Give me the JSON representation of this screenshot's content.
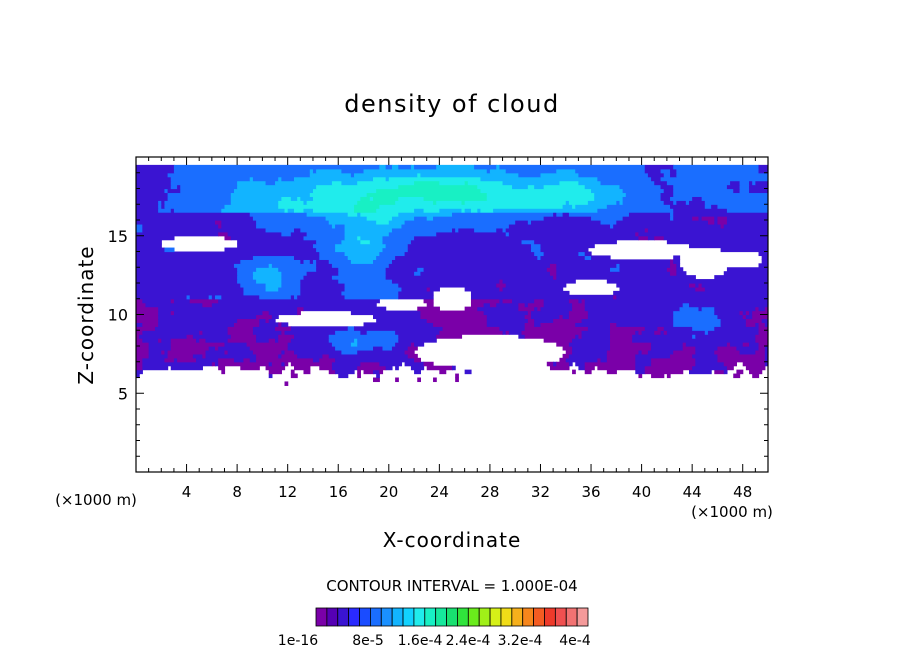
{
  "chart_data": {
    "type": "heatmap",
    "title": "density of cloud",
    "xlabel": "X-coordinate",
    "ylabel": "Z-coordinate",
    "x_unit": "(×1000 m)",
    "y_unit": "(×1000 m)",
    "xlim": [
      0,
      50
    ],
    "ylim": [
      0,
      20
    ],
    "x_ticks": [
      4,
      8,
      12,
      16,
      20,
      24,
      28,
      32,
      36,
      40,
      44,
      48
    ],
    "y_ticks": [
      5,
      10,
      15
    ],
    "contour_interval_label": "CONTOUR INTERVAL = 1.000E-04",
    "colorbar": {
      "tick_labels": [
        "1e-16",
        "8e-5",
        "1.6e-4",
        "2.4e-4",
        "3.2e-4",
        "4e-4"
      ],
      "colors": [
        "#7a00a8",
        "#5500b4",
        "#3a14d2",
        "#2a2aff",
        "#1a4cff",
        "#1a6eff",
        "#1a90ff",
        "#12b4ff",
        "#12d2ff",
        "#20ecec",
        "#18f0c4",
        "#16e89c",
        "#18e070",
        "#30e43c",
        "#6aec1c",
        "#a0f018",
        "#d6f018",
        "#f0dc18",
        "#f6b01c",
        "#f6861c",
        "#f45c22",
        "#ee3a2a",
        "#f05050",
        "#f27272",
        "#f49a9a"
      ]
    },
    "field_summary": {
      "cloud_layer_z_range": [
        5.5,
        19.5
      ],
      "peak_density_region": "upper layer x 6–38, z 11–19 (about 8e-5 to 1.6e-4)",
      "clear_below_z": 5.5
    }
  }
}
